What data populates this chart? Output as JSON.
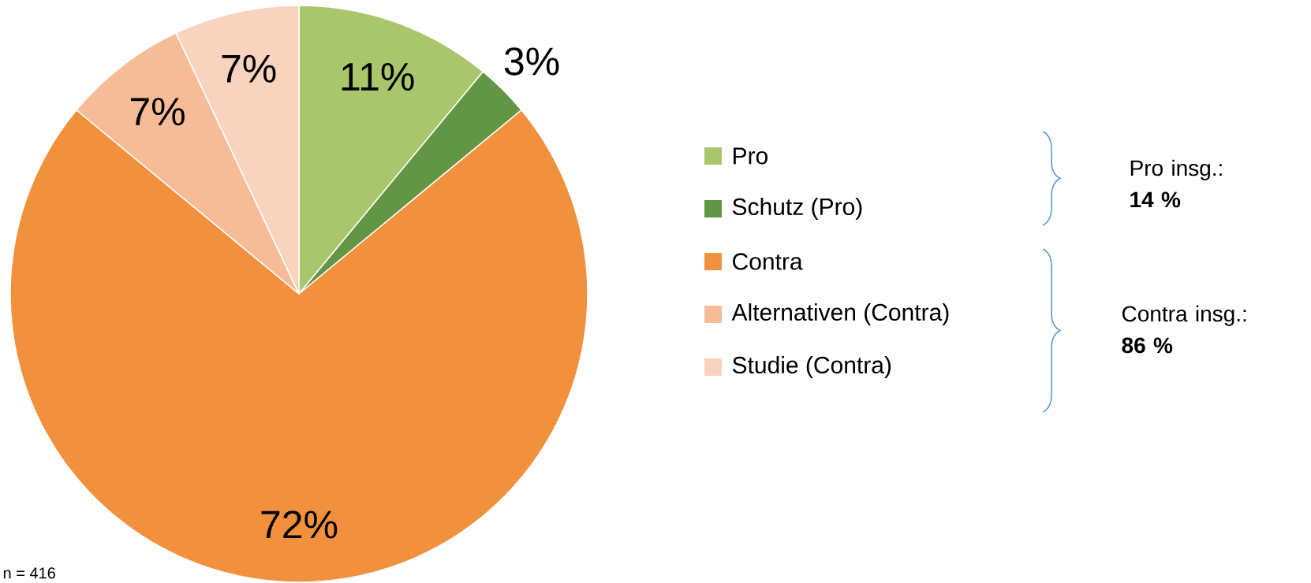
{
  "chart_data": {
    "type": "pie",
    "categories": [
      "Pro",
      "Schutz (Pro)",
      "Contra",
      "Alternativen (Contra)",
      "Studie (Contra)"
    ],
    "values": [
      11,
      3,
      72,
      7,
      7
    ],
    "colors": [
      "#aac66c",
      "#629645",
      "#f2913d",
      "#f6bc98",
      "#f8d4bf"
    ],
    "value_labels": [
      "11%",
      "3%",
      "72%",
      "7%",
      "7%"
    ],
    "legend": "right",
    "annotations": [
      "Pro insg.: **14 %**",
      "Contra insg.: **86 %**",
      "n = 416"
    ]
  }
}
